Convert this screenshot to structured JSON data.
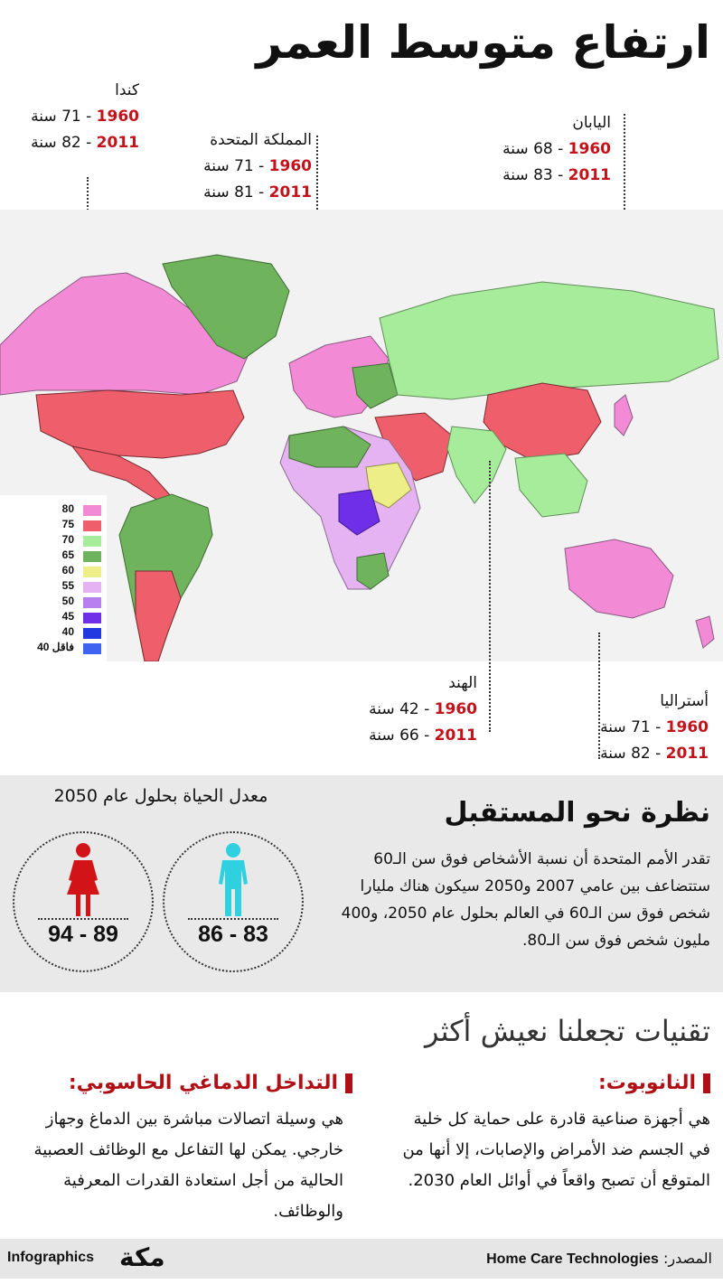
{
  "title": "ارتفاع متوسط العمر",
  "countries": {
    "canada": {
      "name": "كندا",
      "y1960": "1960",
      "v1960": "71 سنة",
      "y2011": "2011",
      "v2011": "82 سنة"
    },
    "uk": {
      "name": "المملكة المتحدة",
      "y1960": "1960",
      "v1960": "71 سنة",
      "y2011": "2011",
      "v2011": "81 سنة"
    },
    "japan": {
      "name": "اليابان",
      "y1960": "1960",
      "v1960": "68 سنة",
      "y2011": "2011",
      "v2011": "83 سنة"
    },
    "india": {
      "name": "الهند",
      "y1960": "1960",
      "v1960": "42 سنة",
      "y2011": "2011",
      "v2011": "66 سنة"
    },
    "australia": {
      "name": "أستراليا",
      "y1960": "1960",
      "v1960": "71 سنة",
      "y2011": "2011",
      "v2011": "82 سنة"
    }
  },
  "legend": [
    {
      "label": "80",
      "color": "#f28ad6"
    },
    {
      "label": "75",
      "color": "#ee5f6b"
    },
    {
      "label": "70",
      "color": "#a6ec9a"
    },
    {
      "label": "65",
      "color": "#6fb45d"
    },
    {
      "label": "60",
      "color": "#eeee88"
    },
    {
      "label": "55",
      "color": "#e6b3f2"
    },
    {
      "label": "50",
      "color": "#b77ff0"
    },
    {
      "label": "45",
      "color": "#6f2fe8"
    },
    {
      "label": "40",
      "color": "#2238e0"
    },
    {
      "label": "40 فاقل",
      "color": "#3f63f0"
    }
  ],
  "future": {
    "title": "نظرة نحو المستقبل",
    "body": "تقدر الأمم المتحدة أن نسبة الأشخاص فوق سن الـ60 ستتضاعف بين عامي 2007 و2050 سيكون هناك مليارا شخص فوق سن الـ60 في العالم بحلول عام 2050، و400 مليون شخص فوق سن الـ80.",
    "life_title": "معدل الحياة بحلول عام 2050",
    "female_range": "94 - 89",
    "male_range": "86 - 83"
  },
  "tech": {
    "title": "تقنيات تجعلنا نعيش أكثر",
    "nanobots_head": "النانوبوت:",
    "nanobots_body": "هي أجهزة صناعية قادرة على حماية كل خلية في الجسم ضد الأمراض والإصابات، إلا أنها من المتوقع أن تصبح واقعاً في أوائل العام 2030.",
    "bci_head": "التداخل الدماغي الحاسوبي:",
    "bci_body": "هي وسيلة اتصالات مباشرة بين الدماغ وجهاز خارجي. يمكن لها التفاعل مع الوظائف العصبية الحالية من أجل استعادة القدرات المعرفية والوظائف."
  },
  "footer": {
    "brand": "Infographics",
    "logo_text": "مكة",
    "source_label": "المصدر:",
    "source": "Home Care Technologies"
  }
}
